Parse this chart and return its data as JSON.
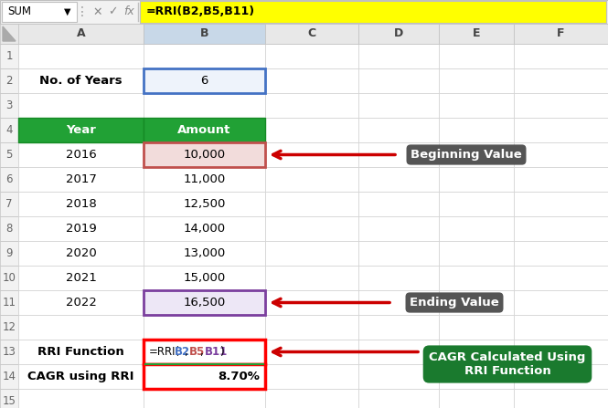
{
  "formula_bar_text": "=RRI(B2,B5,B11)",
  "sum_label": "SUM",
  "col_headers": [
    "A",
    "B",
    "C",
    "D",
    "E",
    "F"
  ],
  "row2_label": "No. of Years",
  "row2_value": "6",
  "header_year": "Year",
  "header_amount": "Amount",
  "years": [
    "2016",
    "2017",
    "2018",
    "2019",
    "2020",
    "2021",
    "2022"
  ],
  "amounts": [
    "10,000",
    "11,000",
    "12,500",
    "14,000",
    "13,000",
    "15,000",
    "16,500"
  ],
  "row13_label": "RRI Function",
  "row14_label": "CAGR using RRI",
  "row14_value": "8.70%",
  "annotation1": "Beginning Value",
  "annotation2": "Ending Value",
  "annotation3_line1": "CAGR Calculated Using",
  "annotation3_line2": "RRI Function",
  "bg_color": "#FFFFFF",
  "header_bg": "#21A135",
  "header_text": "#FFFFFF",
  "formula_bar_bg": "#FFFF00",
  "annotation_box1_bg": "#555555",
  "annotation_box2_bg": "#1A7A2E",
  "highlight_b2_border": "#4472C4",
  "highlight_b2_bg": "#EEF3FB",
  "highlight_b5_bg": "#F2DCDB",
  "highlight_b11_bg": "#EDE7F6",
  "highlight_b5_border": "#C0504D",
  "highlight_b11_border": "#7B3F9E",
  "rri_blue": "#4472C4",
  "rri_red": "#C0504D",
  "rri_purple": "#7B3F9E",
  "toolbar_bg": "#F2F2F2",
  "col_header_bg": "#E8E8E8",
  "col_b_header_bg": "#C8D8E8",
  "grid_color": "#D0D0D0",
  "row_num_bg": "#F2F2F2"
}
